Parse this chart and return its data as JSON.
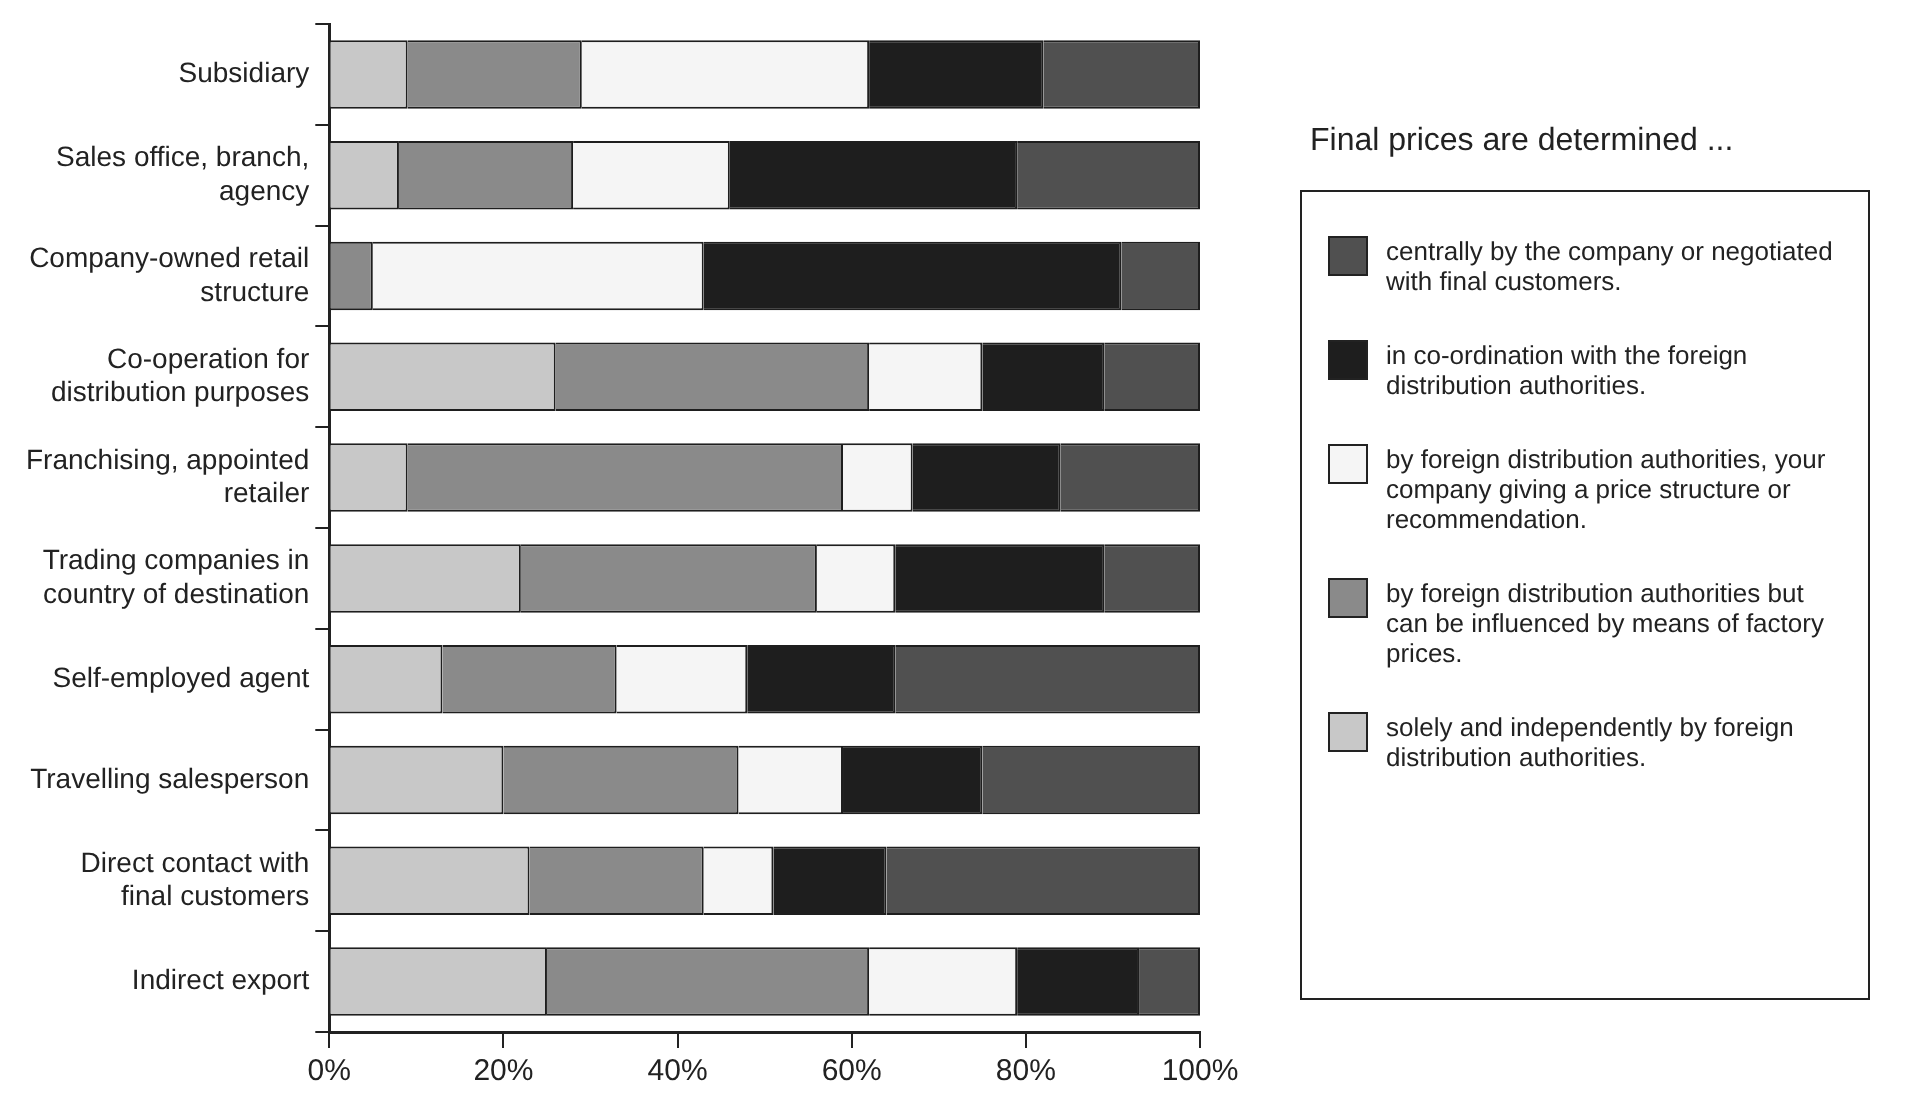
{
  "chart_data": {
    "type": "bar",
    "orientation": "horizontal",
    "stacked": true,
    "categories": [
      "Subsidiary",
      "Sales office, branch, agency",
      "Company-owned retail structure",
      "Co-operation for distribution purposes",
      "Franchising, appointed retailer",
      "Trading companies in country of destination",
      "Self-employed agent",
      "Travelling salesperson",
      "Direct contact with final customers",
      "Indirect export"
    ],
    "series": [
      {
        "name": "solely and independently by foreign distribution authorities.",
        "color": "#c8c8c8",
        "values": [
          9,
          8,
          0,
          26,
          9,
          22,
          13,
          20,
          23,
          25
        ]
      },
      {
        "name": "by foreign distribution authorities but can be influenced by means of factory prices.",
        "color": "#8a8a8a",
        "values": [
          20,
          20,
          5,
          36,
          50,
          34,
          20,
          27,
          20,
          37
        ]
      },
      {
        "name": "by foreign distribution authorities, your company giving a price structure or recommendation.",
        "color": "#f5f5f5",
        "values": [
          33,
          18,
          38,
          13,
          8,
          9,
          15,
          12,
          8,
          17
        ]
      },
      {
        "name": "in co-ordination with the foreign distribution authorities.",
        "color": "#1e1e1e",
        "values": [
          20,
          33,
          48,
          14,
          17,
          24,
          17,
          16,
          13,
          14
        ]
      },
      {
        "name": "centrally by the company or negotiated with final customers.",
        "color": "#505050",
        "values": [
          18,
          21,
          9,
          11,
          16,
          11,
          35,
          25,
          36,
          7
        ]
      }
    ],
    "xlim": [
      0,
      100
    ],
    "xticks": [
      {
        "value": 0,
        "label": "0%"
      },
      {
        "value": 20,
        "label": "20%"
      },
      {
        "value": 40,
        "label": "40%"
      },
      {
        "value": 60,
        "label": "60%"
      },
      {
        "value": 80,
        "label": "80%"
      },
      {
        "value": 100,
        "label": "100%"
      }
    ],
    "legend": "right",
    "legend_title": "Final prices are determined ..."
  }
}
